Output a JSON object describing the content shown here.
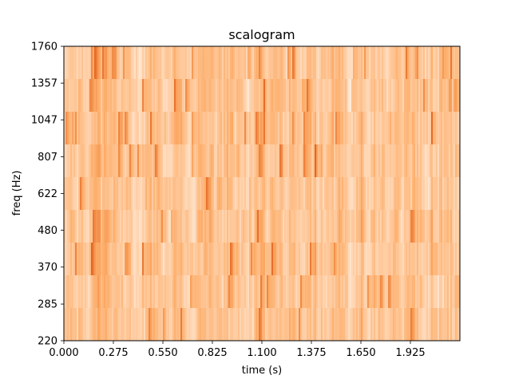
{
  "chart_data": {
    "type": "heatmap",
    "title": "scalogram",
    "xlabel": "time (s)",
    "ylabel": "freq (Hz)",
    "xlim": [
      0,
      2.2
    ],
    "ylim": [
      220,
      1760
    ],
    "y_scale": "log",
    "x_ticks": [
      {
        "value": 0.0,
        "label": "0.000"
      },
      {
        "value": 0.275,
        "label": "0.275"
      },
      {
        "value": 0.55,
        "label": "0.550"
      },
      {
        "value": 0.825,
        "label": "0.825"
      },
      {
        "value": 1.1,
        "label": "1.100"
      },
      {
        "value": 1.375,
        "label": "1.375"
      },
      {
        "value": 1.65,
        "label": "1.650"
      },
      {
        "value": 1.925,
        "label": "1.925"
      }
    ],
    "y_ticks": [
      {
        "value": 220,
        "label": "220"
      },
      {
        "value": 285,
        "label": "285"
      },
      {
        "value": 370,
        "label": "370"
      },
      {
        "value": 480,
        "label": "480"
      },
      {
        "value": 622,
        "label": "622"
      },
      {
        "value": 807,
        "label": "807"
      },
      {
        "value": 1047,
        "label": "1047"
      },
      {
        "value": 1357,
        "label": "1357"
      },
      {
        "value": 1760,
        "label": "1760"
      }
    ],
    "colormap": "Oranges",
    "colors": {
      "low": "#fff5eb",
      "mid": "#fdae6b",
      "high": "#d94801"
    },
    "grid": false,
    "legend": "none"
  }
}
